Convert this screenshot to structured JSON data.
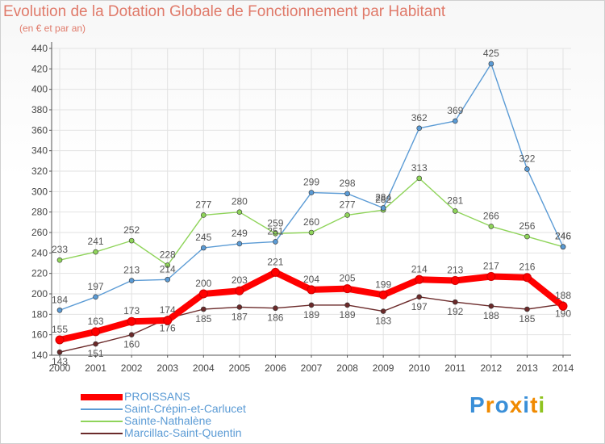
{
  "title": "Evolution de la Dotation Globale de Fonctionnement par Habitant",
  "subtitle": "(en € et par an)",
  "logo": {
    "text": "Proxiti"
  },
  "chart_data": {
    "type": "line",
    "x": [
      "2000",
      "2001",
      "2002",
      "2003",
      "2004",
      "2005",
      "2006",
      "2007",
      "2008",
      "2009",
      "2010",
      "2011",
      "2012",
      "2013",
      "2014"
    ],
    "ylim": [
      140,
      440
    ],
    "yticks": [
      140,
      160,
      180,
      200,
      220,
      240,
      260,
      280,
      300,
      320,
      340,
      360,
      380,
      400,
      420,
      440
    ],
    "grid": true,
    "legend": "bottom-left",
    "series": [
      {
        "name": "PROISSANS",
        "color": "#ff0000",
        "values": [
          155,
          163,
          173,
          174,
          200,
          203,
          221,
          204,
          205,
          199,
          214,
          213,
          217,
          216,
          188
        ]
      },
      {
        "name": "Saint-Crépin-et-Carlucet",
        "color": "#5b9bd5",
        "values": [
          184,
          197,
          213,
          214,
          245,
          249,
          251,
          299,
          298,
          284,
          362,
          369,
          425,
          322,
          246
        ]
      },
      {
        "name": "Sainte-Nathalène",
        "color": "#8fd45a",
        "values": [
          233,
          241,
          252,
          228,
          277,
          280,
          259,
          260,
          277,
          282,
          313,
          281,
          266,
          256,
          246
        ]
      },
      {
        "name": "Marcillac-Saint-Quentin",
        "color": "#6b2a2a",
        "values": [
          143,
          151,
          160,
          176,
          185,
          187,
          186,
          189,
          189,
          183,
          197,
          192,
          188,
          185,
          190
        ]
      }
    ]
  }
}
